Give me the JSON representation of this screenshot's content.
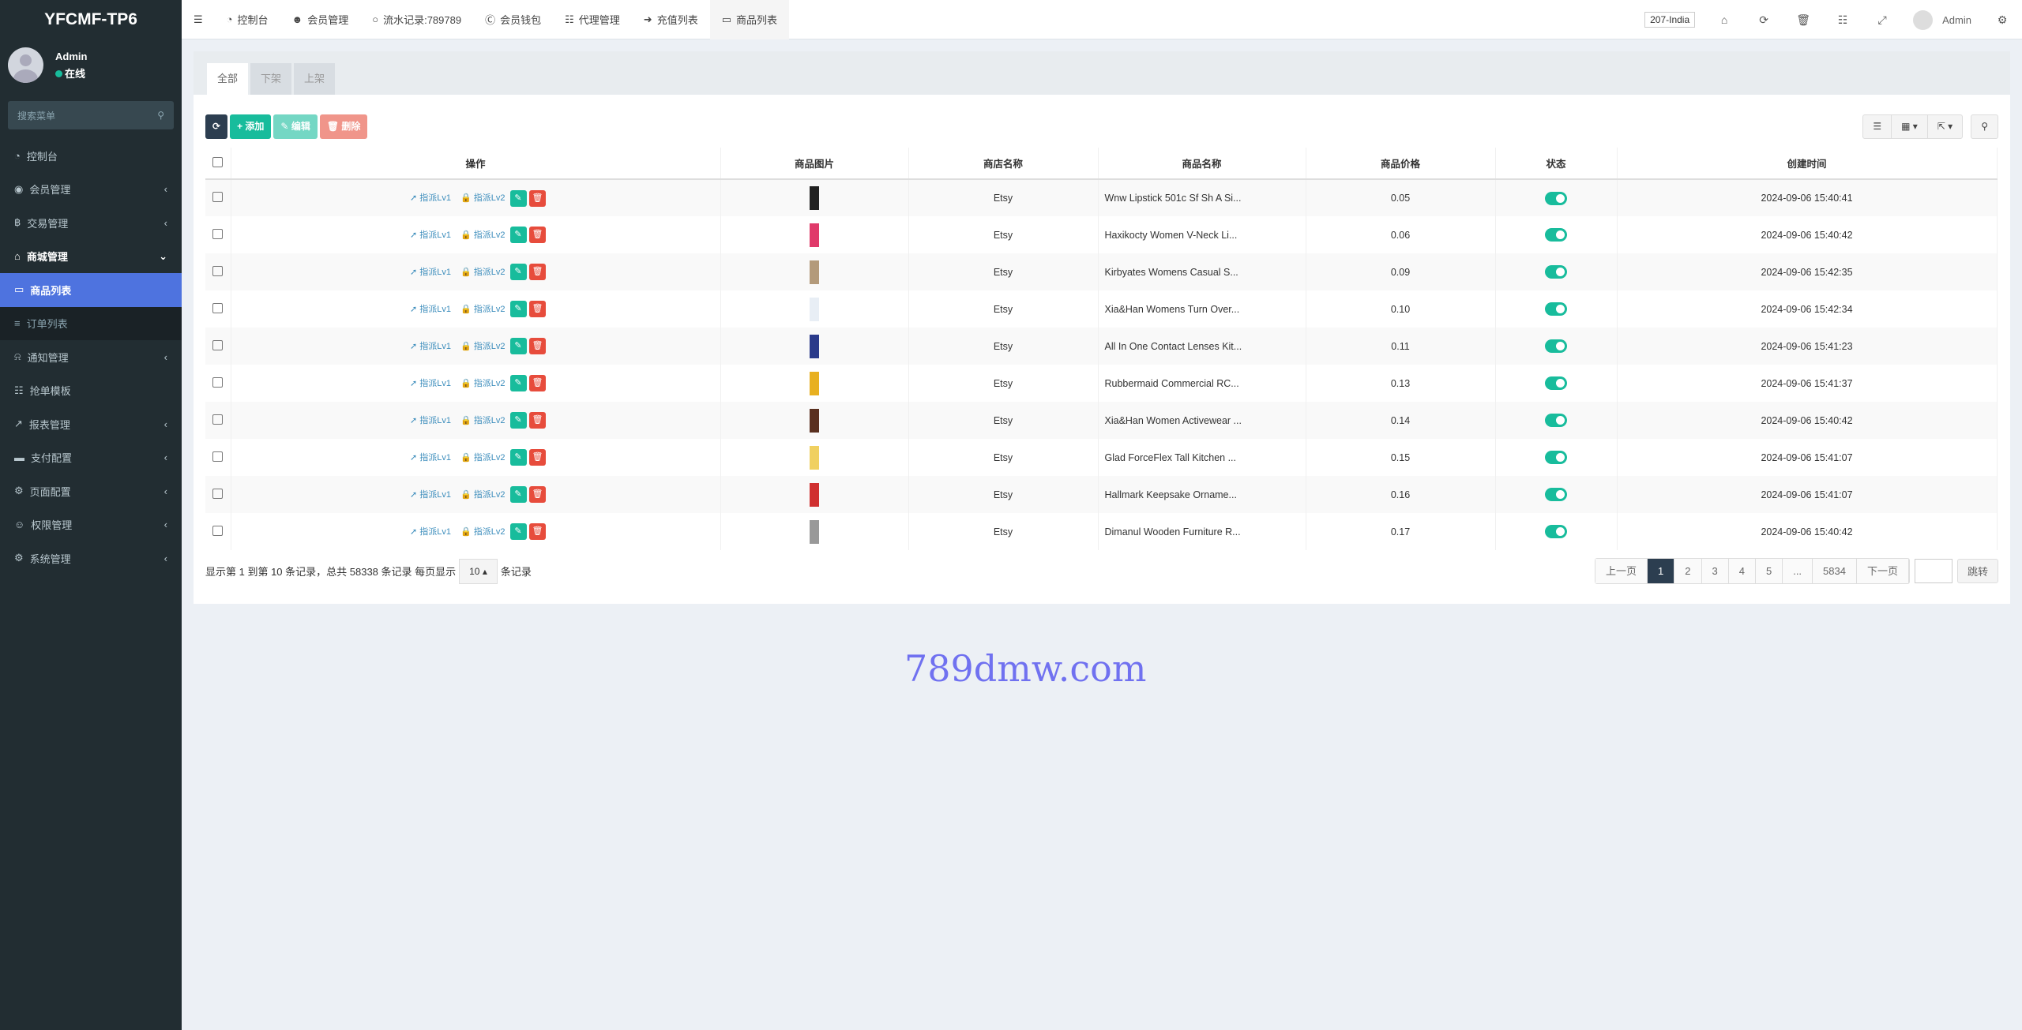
{
  "app": {
    "title": "YFCMF-TP6"
  },
  "user": {
    "name": "Admin",
    "status": "在线"
  },
  "sidebar": {
    "search_placeholder": "搜索菜单",
    "items": [
      {
        "label": "控制台",
        "icon": "dashboard-icon",
        "state": ""
      },
      {
        "label": "会员管理",
        "icon": "user-circle-icon",
        "state": "collapsed"
      },
      {
        "label": "交易管理",
        "icon": "bitcoin-icon",
        "state": "collapsed"
      },
      {
        "label": "商城管理",
        "icon": "home-icon",
        "state": "open"
      },
      {
        "label": "商品列表",
        "icon": "desktop-icon",
        "state": "active"
      },
      {
        "label": "订单列表",
        "icon": "list-icon",
        "state": "sub"
      },
      {
        "label": "通知管理",
        "icon": "bell-icon",
        "state": "collapsed"
      },
      {
        "label": "抢单模板",
        "icon": "sitemap-icon",
        "state": ""
      },
      {
        "label": "报表管理",
        "icon": "line-chart-icon",
        "state": "collapsed"
      },
      {
        "label": "支付配置",
        "icon": "credit-card-icon",
        "state": "collapsed"
      },
      {
        "label": "页面配置",
        "icon": "cog-icon",
        "state": "collapsed"
      },
      {
        "label": "权限管理",
        "icon": "users-icon",
        "state": "collapsed"
      },
      {
        "label": "系统管理",
        "icon": "cogs-icon",
        "state": "collapsed"
      }
    ]
  },
  "topnav": {
    "items": [
      {
        "label": "控制台",
        "icon": "dashboard-icon"
      },
      {
        "label": "会员管理",
        "icon": "user-icon"
      },
      {
        "label": "流水记录:789789",
        "icon": "circle-icon"
      },
      {
        "label": "会员钱包",
        "icon": "cc-icon"
      },
      {
        "label": "代理管理",
        "icon": "sitemap-icon"
      },
      {
        "label": "充值列表",
        "icon": "sign-in-icon"
      },
      {
        "label": "商品列表",
        "icon": "desktop-icon",
        "active": true
      }
    ],
    "country": "207-India",
    "admin": "Admin"
  },
  "tabs": [
    "全部",
    "下架",
    "上架"
  ],
  "toolbar": {
    "add": "添加",
    "edit": "编辑",
    "delete": "删除"
  },
  "colors": {
    "sidebar": "#222d32",
    "active": "#4e73df",
    "success": "#18bc9c",
    "danger": "#e74c3c",
    "dark": "#2c3e50"
  },
  "table": {
    "columns": [
      "操作",
      "商品图片",
      "商店名称",
      "商品名称",
      "商品价格",
      "状态",
      "创建时间"
    ],
    "action_lv1": "指派Lv1",
    "action_lv2": "指派Lv2",
    "rows": [
      {
        "shop": "Etsy",
        "name": "Wnw Lipstick 501c Sf Sh A Si...",
        "price": "0.05",
        "status": true,
        "time": "2024-09-06 15:40:41"
      },
      {
        "shop": "Etsy",
        "name": "Haxikocty Women V-Neck Li...",
        "price": "0.06",
        "status": true,
        "time": "2024-09-06 15:40:42"
      },
      {
        "shop": "Etsy",
        "name": "Kirbyates Womens Casual S...",
        "price": "0.09",
        "status": true,
        "time": "2024-09-06 15:42:35"
      },
      {
        "shop": "Etsy",
        "name": "Xia&Han Womens Turn Over...",
        "price": "0.10",
        "status": true,
        "time": "2024-09-06 15:42:34"
      },
      {
        "shop": "Etsy",
        "name": "All In One Contact Lenses Kit...",
        "price": "0.11",
        "status": true,
        "time": "2024-09-06 15:41:23"
      },
      {
        "shop": "Etsy",
        "name": "Rubbermaid Commercial RC...",
        "price": "0.13",
        "status": true,
        "time": "2024-09-06 15:41:37"
      },
      {
        "shop": "Etsy",
        "name": "Xia&Han Women Activewear ...",
        "price": "0.14",
        "status": true,
        "time": "2024-09-06 15:40:42"
      },
      {
        "shop": "Etsy",
        "name": "Glad ForceFlex Tall Kitchen ...",
        "price": "0.15",
        "status": true,
        "time": "2024-09-06 15:41:07"
      },
      {
        "shop": "Etsy",
        "name": "Hallmark Keepsake Orname...",
        "price": "0.16",
        "status": true,
        "time": "2024-09-06 15:41:07"
      },
      {
        "shop": "Etsy",
        "name": "Dimanul Wooden Furniture R...",
        "price": "0.17",
        "status": true,
        "time": "2024-09-06 15:40:42"
      }
    ]
  },
  "footer": {
    "summary": "显示第 1 到第 10 条记录，总共 58338 条记录 每页显示",
    "page_size": "10",
    "suffix": "条记录"
  },
  "pagination": {
    "prev": "上一页",
    "pages": [
      "1",
      "2",
      "3",
      "4",
      "5",
      "...",
      "5834"
    ],
    "current": "1",
    "next": "下一页",
    "go": "跳转"
  },
  "watermark": "789dmw.com"
}
